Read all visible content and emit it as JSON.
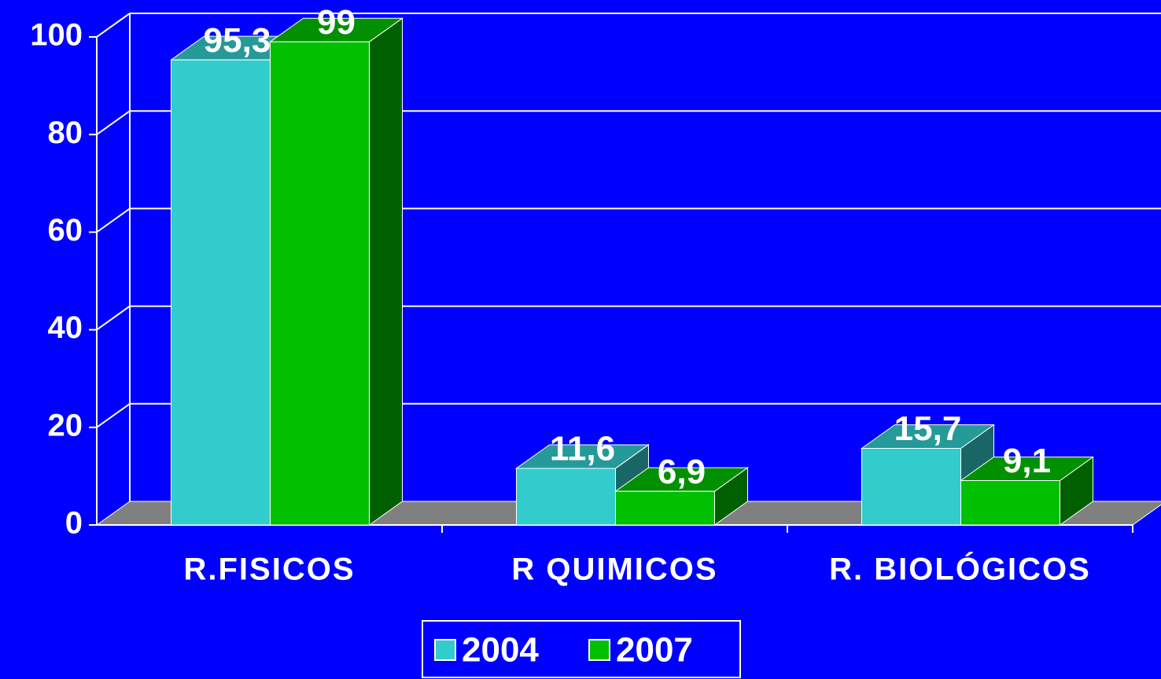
{
  "chart_data": {
    "type": "bar3d",
    "categories": [
      "R.FISICOS",
      "R QUIMICOS",
      "R. BIOLÓGICOS"
    ],
    "series": [
      {
        "name": "2004",
        "color": "#33cccc",
        "values": [
          95.3,
          11.6,
          15.7
        ],
        "value_labels": [
          "95,3",
          "11,6",
          "15,7"
        ]
      },
      {
        "name": "2007",
        "color": "#00c000",
        "values": [
          99,
          6.9,
          9.1
        ],
        "value_labels": [
          "99",
          "6,9",
          "9,1"
        ]
      }
    ],
    "ylim": [
      0,
      100
    ],
    "yticks": [
      0,
      20,
      40,
      60,
      80,
      100
    ],
    "grid": true,
    "legend": "bottom"
  }
}
